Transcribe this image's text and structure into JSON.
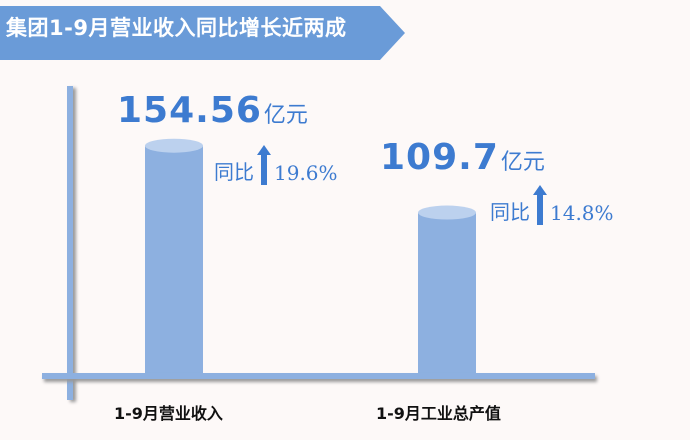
{
  "header": {
    "title": "集团1-9月营业收入同比增长近两成"
  },
  "colors": {
    "banner": "#6a9bd8",
    "bar": "#8db0e0",
    "bar_top": "#bcd1ee",
    "text": "#3d7bd0"
  },
  "chart_data": {
    "type": "bar",
    "style": "cylinder",
    "categories": [
      "1-9月营业收入",
      "1-9月工业总产值"
    ],
    "values": [
      154.56,
      109.7
    ],
    "value_labels": [
      "154.56",
      "109.7"
    ],
    "unit": "亿元",
    "yoy_label": "同比",
    "yoy": [
      "19.6%",
      "14.8%"
    ],
    "yoy_icon": "arrow-up-icon",
    "grid": false
  }
}
